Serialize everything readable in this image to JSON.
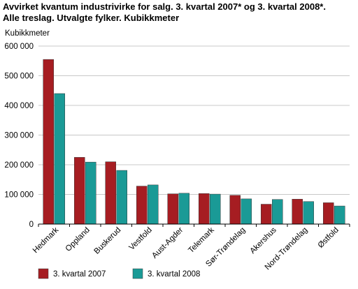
{
  "chart_data": {
    "type": "bar",
    "title_line1": "Avvirket kvantum industrivirke for salg. 3. kvartal 2007* og 3. kvartal 2008*.",
    "title_line2": "Alle treslag. Utvalgte fylker. Kubikkmeter",
    "ylabel": "Kubikkmeter",
    "xlabel": "",
    "ylim": [
      0,
      600000
    ],
    "yticks": [
      0,
      100000,
      200000,
      300000,
      400000,
      500000,
      600000
    ],
    "ytick_labels": [
      "0",
      "100 000",
      "200 000",
      "300 000",
      "400 000",
      "500 000",
      "600 000"
    ],
    "grid": true,
    "legend_position": "bottom-left",
    "categories": [
      "Hedmark",
      "Oppland",
      "Buskerud",
      "Vestfold",
      "Aust-Agder",
      "Telemark",
      "Sør-Trøndelag",
      "Akershus",
      "Nord-Trøndelag",
      "Østfold"
    ],
    "series": [
      {
        "name": "3. kvartal 2007",
        "color": "#a61d22",
        "values": [
          555000,
          225000,
          210000,
          128000,
          102000,
          103000,
          97000,
          67000,
          84000,
          72000
        ]
      },
      {
        "name": "3. kvartal 2008",
        "color": "#1a9a96",
        "values": [
          440000,
          209000,
          181000,
          132000,
          104000,
          101000,
          85000,
          83000,
          76000,
          61000
        ]
      }
    ]
  }
}
